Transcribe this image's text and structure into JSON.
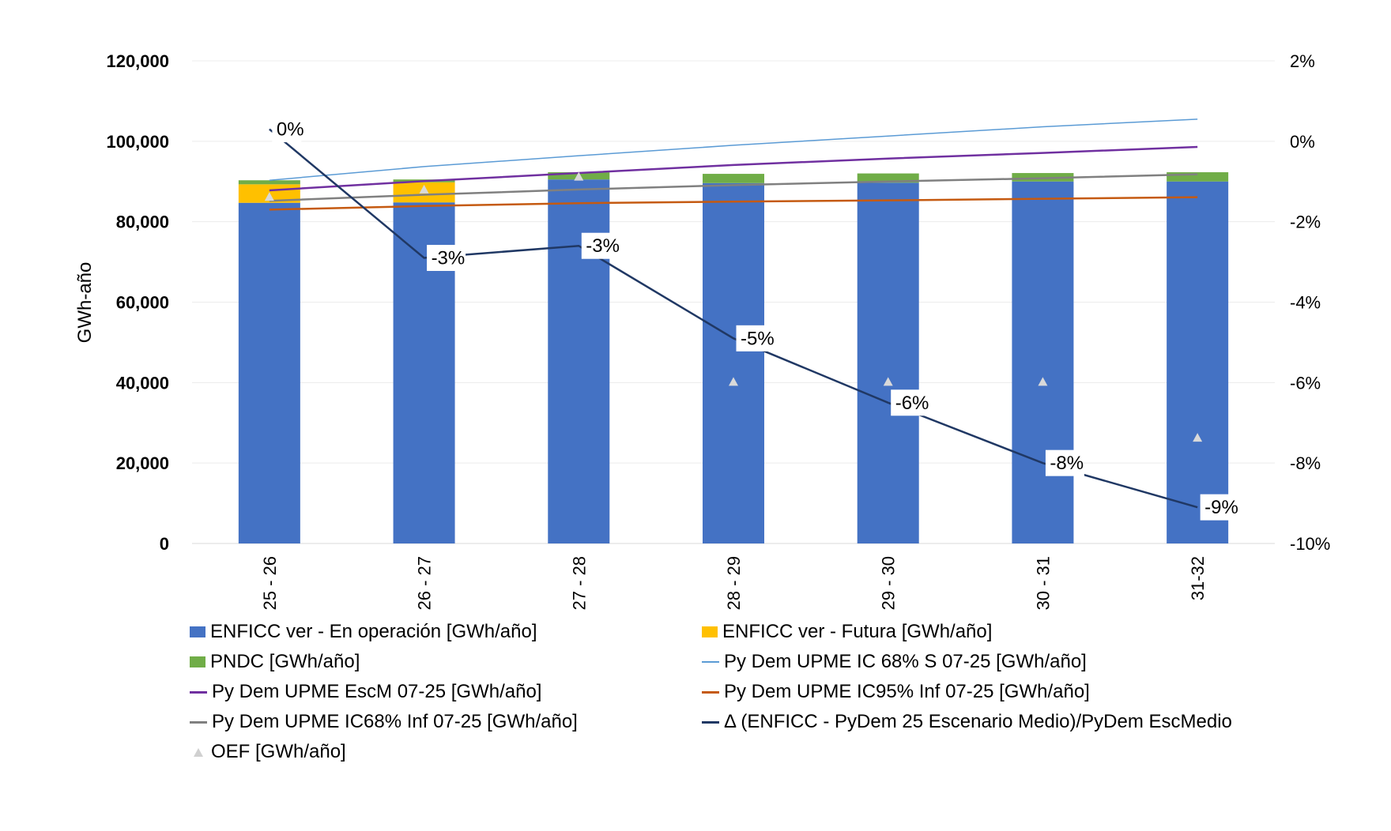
{
  "chart_data": {
    "type": "bar",
    "title": "",
    "xlabel": "",
    "ylabel": "GWh-año",
    "ylim": [
      0,
      120000
    ],
    "y_ticks": [
      "0",
      "20,000",
      "40,000",
      "60,000",
      "80,000",
      "100,000",
      "120,000"
    ],
    "y2lim": [
      -10,
      2
    ],
    "y2_ticks": [
      "-10%",
      "-8%",
      "-6%",
      "-4%",
      "-2%",
      "0%",
      "2%"
    ],
    "categories": [
      "25 - 26",
      "26 - 27",
      "27 - 28",
      "28 - 29",
      "29 - 30",
      "30 - 31",
      "31-32"
    ],
    "stacked_series": [
      {
        "name": "ENFICC ver - En operación [GWh/año]",
        "color": "#4472c4",
        "values": [
          84700,
          84800,
          90500,
          89600,
          89700,
          90000,
          90000
        ]
      },
      {
        "name": "ENFICC ver - Futura [GWh/año]",
        "color": "#ffc000",
        "values": [
          4600,
          5000,
          0,
          0,
          0,
          0,
          0
        ]
      },
      {
        "name": "PNDC [GWh/año]",
        "color": "#70ad47",
        "values": [
          1000,
          700,
          1800,
          2300,
          2300,
          2100,
          2300
        ]
      }
    ],
    "line_series": [
      {
        "name": "Py Dem UPME IC 68% S 07-25 [GWh/año]",
        "color": "#5b9bd5",
        "width": 1.5,
        "values": [
          90300,
          93700,
          96400,
          99000,
          101300,
          103600,
          105500
        ]
      },
      {
        "name": "Py Dem UPME EscM 07-25 [GWh/año]",
        "color": "#7030a0",
        "width": 2.5,
        "values": [
          87800,
          90100,
          92100,
          94100,
          95700,
          97100,
          98600
        ]
      },
      {
        "name": "Py Dem UPME IC95% Inf 07-25 [GWh/año]",
        "color": "#c55a11",
        "width": 2.5,
        "values": [
          83000,
          83900,
          84600,
          85000,
          85300,
          85700,
          86100
        ]
      },
      {
        "name": "Py Dem UPME IC68% Inf 07-25 [GWh/año]",
        "color": "#808080",
        "width": 2.5,
        "values": [
          85200,
          86700,
          88000,
          89100,
          90000,
          90800,
          91800
        ]
      }
    ],
    "delta_series": {
      "name": "Δ (ENFICC - PyDem 25 Escenario Medio)/PyDem EscMedio",
      "color": "#203864",
      "axis": "secondary",
      "values": [
        0.3,
        -2.9,
        -2.6,
        -4.9,
        -6.5,
        -8.0,
        -9.1
      ],
      "labels": [
        "0%",
        "-3%",
        "-3%",
        "-5%",
        "-6%",
        "-8%",
        "-9%"
      ]
    },
    "markers": {
      "name": "OEF [GWh/año]",
      "color": "#d9d9d9",
      "values": [
        86200,
        88000,
        91200,
        40200,
        40200,
        40200,
        26300
      ]
    }
  },
  "legend": {
    "items": [
      "ENFICC ver - En operación [GWh/año]",
      "ENFICC ver - Futura [GWh/año]",
      "PNDC [GWh/año]",
      "Py Dem UPME IC 68% S 07-25 [GWh/año]",
      "Py Dem UPME EscM 07-25 [GWh/año]",
      "Py Dem UPME IC95% Inf 07-25 [GWh/año]",
      "Py Dem UPME IC68% Inf 07-25 [GWh/año]",
      "Δ (ENFICC - PyDem 25 Escenario Medio)/PyDem EscMedio",
      "OEF [GWh/año]"
    ]
  }
}
